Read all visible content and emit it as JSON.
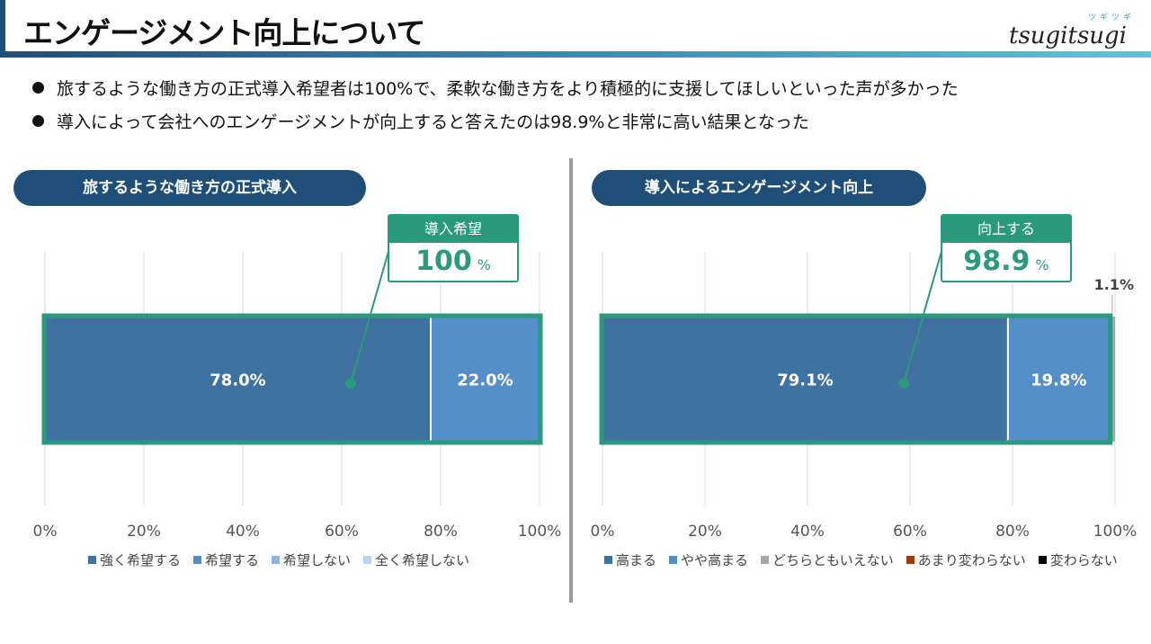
{
  "header": {
    "title": "エンゲージメント向上について",
    "logo_text": "tsugitsugi",
    "logo_ruby": "ツギツギ"
  },
  "bullets": [
    "旅するような働き方の正式導入希望者は100%で、柔軟な働き方をより積極的に支援してほしいといった声が多かった",
    "導入によって会社へのエンゲージメントが向上すると答えたのは98.9%と非常に高い結果となった"
  ],
  "panels": [
    {
      "title": "旅するような働き方の正式導入",
      "callout": {
        "label": "導入希望",
        "value": "100",
        "unit": "%"
      }
    },
    {
      "title": "導入によるエンゲージメント向上",
      "callout": {
        "label": "向上する",
        "value": "98.9",
        "unit": "%"
      }
    }
  ],
  "chart_data": [
    {
      "type": "bar",
      "orientation": "horizontal",
      "stacked": true,
      "x_ticks": [
        "0%",
        "20%",
        "40%",
        "60%",
        "80%",
        "100%"
      ],
      "xlim": [
        0,
        100
      ],
      "grid": true,
      "legend_position": "bottom",
      "series": [
        {
          "name": "強く希望する",
          "value": 78.0,
          "label": "78.0%",
          "color": "#3f72a0"
        },
        {
          "name": "希望する",
          "value": 22.0,
          "label": "22.0%",
          "color": "#558fc9"
        },
        {
          "name": "希望しない",
          "value": 0,
          "label": "",
          "color": "#8fb4dc"
        },
        {
          "name": "全く希望しない",
          "value": 0,
          "label": "",
          "color": "#bcd3ea"
        }
      ]
    },
    {
      "type": "bar",
      "orientation": "horizontal",
      "stacked": true,
      "x_ticks": [
        "0%",
        "20%",
        "40%",
        "60%",
        "80%",
        "100%"
      ],
      "xlim": [
        0,
        100
      ],
      "grid": true,
      "legend_position": "bottom",
      "series": [
        {
          "name": "高まる",
          "value": 79.1,
          "label": "79.1%",
          "color": "#3f72a0"
        },
        {
          "name": "やや高まる",
          "value": 19.8,
          "label": "19.8%",
          "color": "#558fc9"
        },
        {
          "name": "どちらともいえない",
          "value": 1.1,
          "label": "1.1%",
          "color": "#a6a6a6"
        },
        {
          "name": "あまり変わらない",
          "value": 0,
          "label": "",
          "color": "#9c3d0c"
        },
        {
          "name": "変わらない",
          "value": 0,
          "label": "",
          "color": "#000000"
        }
      ]
    }
  ],
  "colors": {
    "accent_green": "#2a9a7e",
    "title_pill": "#1f4e79"
  }
}
